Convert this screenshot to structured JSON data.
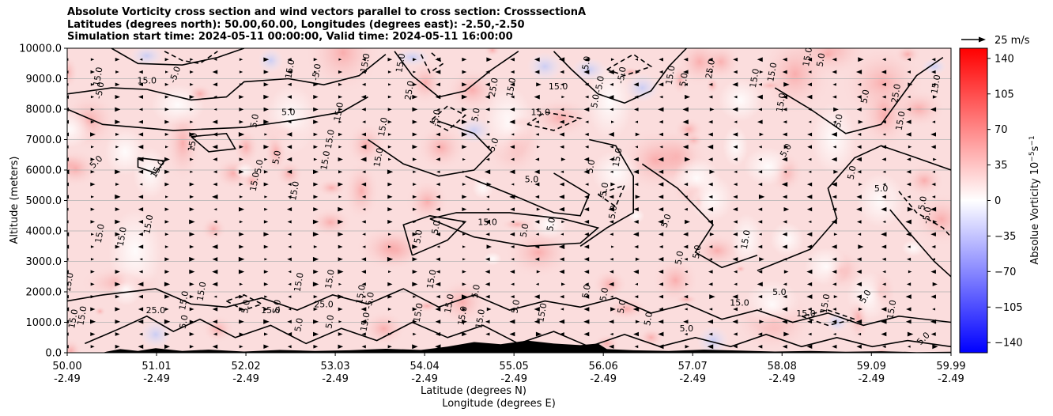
{
  "chart_data": {
    "type": "heatmap",
    "title_lines": [
      "Absolute Vorticity cross section and wind vectors parallel to cross section: CrosssectionA",
      "Latitudes (degrees north): 50.00,60.00, Longitudes (degrees east): -2.50,-2.50",
      "Simulation start time: 2024-05-11 00:00:00, Valid time: 2024-05-11 16:00:00"
    ],
    "ylabel": "Altitude (meters)",
    "xlabel_line1": "Latitude (degrees N)",
    "xlabel_line2": "Longitude (degrees E)",
    "ylim": [
      0,
      10000
    ],
    "xlim": [
      50.0,
      59.99
    ],
    "y_ticks": [
      0,
      1000,
      2000,
      3000,
      4000,
      5000,
      6000,
      7000,
      8000,
      9000,
      10000
    ],
    "y_tick_labels": [
      "0.0",
      "1000.0",
      "2000.0",
      "3000.0",
      "4000.0",
      "5000.0",
      "6000.0",
      "7000.0",
      "8000.0",
      "9000.0",
      "10000.0"
    ],
    "x_ticks": [
      50.0,
      51.01,
      52.02,
      53.03,
      54.04,
      55.05,
      56.06,
      57.07,
      58.08,
      59.09,
      59.99
    ],
    "x_tick_lat_labels": [
      "50.00",
      "51.01",
      "52.02",
      "53.03",
      "54.04",
      "55.05",
      "56.06",
      "57.07",
      "58.08",
      "59.09",
      "59.99"
    ],
    "x_tick_lon_labels": [
      "-2.49",
      "-2.49",
      "-2.49",
      "-2.49",
      "-2.49",
      "-2.49",
      "-2.49",
      "-2.49",
      "-2.49",
      "-2.49",
      "-2.49"
    ],
    "grid": "horizontal",
    "colorbar": {
      "label": "Absolue Vorticity 10",
      "label_units": "s",
      "exp1": "−5",
      "exp2": "−1",
      "range": [
        -150,
        150
      ],
      "ticks": [
        140,
        105,
        70,
        35,
        0,
        -35,
        -70,
        -105,
        -140
      ],
      "tick_labels": [
        "140",
        "105",
        "70",
        "35",
        "0",
        "−35",
        "−70",
        "−105",
        "−140"
      ],
      "colormap": "bwr"
    },
    "quiver_key": {
      "label": "25 m/s",
      "speed": 25
    },
    "contour_levels": [
      -5.0,
      5.0,
      15.0,
      25.0
    ],
    "contour_labels": [
      {
        "lat": 50.38,
        "alt": 9050,
        "text": "15.0",
        "rot": -80
      },
      {
        "lat": 50.4,
        "alt": 8600,
        "text": "-5.0",
        "rot": -80
      },
      {
        "lat": 50.9,
        "alt": 8850,
        "text": "15.0",
        "rot": 0
      },
      {
        "lat": 51.25,
        "alt": 9100,
        "text": "-5.0",
        "rot": -70
      },
      {
        "lat": 52.5,
        "alt": 7800,
        "text": "5.0",
        "rot": 0
      },
      {
        "lat": 52.15,
        "alt": 7600,
        "text": "5.0",
        "rot": -80
      },
      {
        "lat": 51.45,
        "alt": 6900,
        "text": "15.0",
        "rot": -80
      },
      {
        "lat": 51.05,
        "alt": 6000,
        "text": "15.0",
        "rot": -60
      },
      {
        "lat": 50.35,
        "alt": 6200,
        "text": "5.0",
        "rot": -45
      },
      {
        "lat": 52.2,
        "alt": 6100,
        "text": "5.0",
        "rot": -80
      },
      {
        "lat": 52.4,
        "alt": 6400,
        "text": "5.0",
        "rot": -80
      },
      {
        "lat": 52.15,
        "alt": 5600,
        "text": "15.0",
        "rot": -80
      },
      {
        "lat": 52.6,
        "alt": 5300,
        "text": "15.0",
        "rot": -80
      },
      {
        "lat": 53.0,
        "alt": 7000,
        "text": "15.0",
        "rot": -80
      },
      {
        "lat": 52.95,
        "alt": 6300,
        "text": "15.0",
        "rot": -80
      },
      {
        "lat": 53.1,
        "alt": 7900,
        "text": "15.0",
        "rot": -80
      },
      {
        "lat": 53.55,
        "alt": 6400,
        "text": "15.0",
        "rot": -80
      },
      {
        "lat": 50.95,
        "alt": 4200,
        "text": "15.0",
        "rot": -80
      },
      {
        "lat": 50.4,
        "alt": 3900,
        "text": "15.0",
        "rot": -80
      },
      {
        "lat": 50.65,
        "alt": 3800,
        "text": "15.0",
        "rot": -80
      },
      {
        "lat": 54.0,
        "alt": 3800,
        "text": "5.0",
        "rot": -80
      },
      {
        "lat": 54.2,
        "alt": 4100,
        "text": "5.0",
        "rot": -80
      },
      {
        "lat": 54.75,
        "alt": 4200,
        "text": "15.0",
        "rot": 0
      },
      {
        "lat": 55.5,
        "alt": 4200,
        "text": "5.0",
        "rot": -80
      },
      {
        "lat": 55.2,
        "alt": 4000,
        "text": "5.0",
        "rot": -80
      },
      {
        "lat": 54.85,
        "alt": 6800,
        "text": "5.0",
        "rot": -70
      },
      {
        "lat": 55.25,
        "alt": 5600,
        "text": "5.0",
        "rot": 0
      },
      {
        "lat": 55.95,
        "alt": 6100,
        "text": "5.0",
        "rot": -80
      },
      {
        "lat": 56.1,
        "alt": 5300,
        "text": "-5.0",
        "rot": -80
      },
      {
        "lat": 56.25,
        "alt": 6400,
        "text": "15.0",
        "rot": -80
      },
      {
        "lat": 56.2,
        "alt": 4600,
        "text": "5.0",
        "rot": -80
      },
      {
        "lat": 56.8,
        "alt": 4300,
        "text": "5.0",
        "rot": -70
      },
      {
        "lat": 56.95,
        "alt": 3100,
        "text": "5.0",
        "rot": -80
      },
      {
        "lat": 57.15,
        "alt": 3300,
        "text": "5.0",
        "rot": -80
      },
      {
        "lat": 57.7,
        "alt": 3700,
        "text": "15.0",
        "rot": -80
      },
      {
        "lat": 58.15,
        "alt": 6600,
        "text": "5.0",
        "rot": -60
      },
      {
        "lat": 59.2,
        "alt": 5300,
        "text": "5.0",
        "rot": 0
      },
      {
        "lat": 58.9,
        "alt": 5900,
        "text": "5.0",
        "rot": -80
      },
      {
        "lat": 59.7,
        "alt": 4900,
        "text": "5.0",
        "rot": -80
      },
      {
        "lat": 59.75,
        "alt": 4500,
        "text": "-5.0",
        "rot": -80
      },
      {
        "lat": 58.75,
        "alt": 7600,
        "text": "5.0",
        "rot": -80
      },
      {
        "lat": 59.45,
        "alt": 7600,
        "text": "15.0",
        "rot": -80
      },
      {
        "lat": 58.1,
        "alt": 8200,
        "text": "15.0",
        "rot": -80
      },
      {
        "lat": 59.05,
        "alt": 8400,
        "text": "5.0",
        "rot": -80
      },
      {
        "lat": 59.4,
        "alt": 8500,
        "text": "25.0",
        "rot": -80
      },
      {
        "lat": 59.85,
        "alt": 8800,
        "text": "15.0",
        "rot": -80
      },
      {
        "lat": 57.0,
        "alt": 8950,
        "text": "5.0",
        "rot": -80
      },
      {
        "lat": 57.3,
        "alt": 9300,
        "text": "25.0",
        "rot": -80
      },
      {
        "lat": 56.85,
        "alt": 9100,
        "text": "15.0",
        "rot": -80
      },
      {
        "lat": 55.55,
        "alt": 8650,
        "text": "15.0",
        "rot": 0
      },
      {
        "lat": 55.05,
        "alt": 8700,
        "text": "15.0",
        "rot": -80
      },
      {
        "lat": 54.85,
        "alt": 8700,
        "text": "25.0",
        "rot": -80
      },
      {
        "lat": 55.35,
        "alt": 7800,
        "text": "15.0",
        "rot": 0
      },
      {
        "lat": 54.2,
        "alt": 7700,
        "text": "-5.0",
        "rot": -80
      },
      {
        "lat": 53.6,
        "alt": 7400,
        "text": "15.0",
        "rot": -80
      },
      {
        "lat": 53.9,
        "alt": 8600,
        "text": "25.0",
        "rot": -80
      },
      {
        "lat": 54.65,
        "alt": 7800,
        "text": "5.0",
        "rot": -80
      },
      {
        "lat": 56.0,
        "alt": 8250,
        "text": "5.0",
        "rot": -80
      },
      {
        "lat": 56.3,
        "alt": 9100,
        "text": "-5.0",
        "rot": -80
      },
      {
        "lat": 58.0,
        "alt": 9200,
        "text": "15.0",
        "rot": -80
      },
      {
        "lat": 58.55,
        "alt": 9600,
        "text": "5.0",
        "rot": -80
      },
      {
        "lat": 58.4,
        "alt": 9700,
        "text": "15.0",
        "rot": -80
      },
      {
        "lat": 52.55,
        "alt": 9300,
        "text": "15.0",
        "rot": -80
      },
      {
        "lat": 53.4,
        "alt": 9500,
        "text": "15.0",
        "rot": -80
      },
      {
        "lat": 52.85,
        "alt": 9200,
        "text": "-5.0",
        "rot": -80
      },
      {
        "lat": 53.8,
        "alt": 9500,
        "text": "15.0",
        "rot": -80
      },
      {
        "lat": 55.9,
        "alt": 9500,
        "text": "5.0",
        "rot": -80
      },
      {
        "lat": 56.05,
        "alt": 8800,
        "text": "-5.0",
        "rot": -80
      },
      {
        "lat": 57.8,
        "alt": 9000,
        "text": "15.0",
        "rot": -80
      },
      {
        "lat": 50.05,
        "alt": 2300,
        "text": "15.0",
        "rot": -80
      },
      {
        "lat": 50.1,
        "alt": 1100,
        "text": "15.0",
        "rot": -80
      },
      {
        "lat": 50.2,
        "alt": 1200,
        "text": "15.0",
        "rot": -80
      },
      {
        "lat": 51.0,
        "alt": 1300,
        "text": "25.0",
        "rot": 0
      },
      {
        "lat": 51.35,
        "alt": 1700,
        "text": "15.0",
        "rot": -80
      },
      {
        "lat": 51.35,
        "alt": 1000,
        "text": "5.0",
        "rot": -80
      },
      {
        "lat": 51.55,
        "alt": 2000,
        "text": "15.0",
        "rot": -80
      },
      {
        "lat": 52.05,
        "alt": 1500,
        "text": "5.0",
        "rot": -80
      },
      {
        "lat": 52.3,
        "alt": 1300,
        "text": "15.0",
        "rot": 0
      },
      {
        "lat": 52.4,
        "alt": 1500,
        "text": "5.0",
        "rot": -80
      },
      {
        "lat": 52.65,
        "alt": 2300,
        "text": "15.0",
        "rot": -80
      },
      {
        "lat": 52.65,
        "alt": 900,
        "text": "5.0",
        "rot": -80
      },
      {
        "lat": 52.9,
        "alt": 1500,
        "text": "25.0",
        "rot": 0
      },
      {
        "lat": 53.0,
        "alt": 1000,
        "text": "5.0",
        "rot": -80
      },
      {
        "lat": 53.0,
        "alt": 2400,
        "text": "15.0",
        "rot": -80
      },
      {
        "lat": 53.45,
        "alt": 1700,
        "text": "-5.0",
        "rot": -80
      },
      {
        "lat": 53.35,
        "alt": 1900,
        "text": "15.0",
        "rot": -80
      },
      {
        "lat": 53.4,
        "alt": 1000,
        "text": "15.0",
        "rot": -80
      },
      {
        "lat": 54.0,
        "alt": 1300,
        "text": "15.0",
        "rot": -80
      },
      {
        "lat": 54.15,
        "alt": 2400,
        "text": "15.0",
        "rot": -80
      },
      {
        "lat": 54.35,
        "alt": 1600,
        "text": "15.0",
        "rot": -80
      },
      {
        "lat": 54.5,
        "alt": 1200,
        "text": "15.0",
        "rot": -80
      },
      {
        "lat": 54.65,
        "alt": 2000,
        "text": "5.0",
        "rot": -80
      },
      {
        "lat": 54.7,
        "alt": 1100,
        "text": "15.0",
        "rot": -80
      },
      {
        "lat": 55.1,
        "alt": 1500,
        "text": "5.0",
        "rot": -80
      },
      {
        "lat": 55.4,
        "alt": 1300,
        "text": "15.0",
        "rot": -80
      },
      {
        "lat": 55.9,
        "alt": 2000,
        "text": "5.0",
        "rot": -80
      },
      {
        "lat": 56.1,
        "alt": 1900,
        "text": "5.0",
        "rot": -80
      },
      {
        "lat": 56.3,
        "alt": 1500,
        "text": "5.0",
        "rot": -80
      },
      {
        "lat": 56.6,
        "alt": 1100,
        "text": "5.0",
        "rot": -80
      },
      {
        "lat": 57.0,
        "alt": 700,
        "text": "5.0",
        "rot": 0
      },
      {
        "lat": 57.6,
        "alt": 1550,
        "text": "15.0",
        "rot": 0
      },
      {
        "lat": 58.05,
        "alt": 1900,
        "text": "5.0",
        "rot": 0
      },
      {
        "lat": 58.35,
        "alt": 1200,
        "text": "15.0",
        "rot": 0
      },
      {
        "lat": 58.6,
        "alt": 1600,
        "text": "15.0",
        "rot": -80
      },
      {
        "lat": 59.05,
        "alt": 1800,
        "text": "5.0",
        "rot": -60
      },
      {
        "lat": 59.35,
        "alt": 1400,
        "text": "15.0",
        "rot": -80
      },
      {
        "lat": 59.7,
        "alt": 400,
        "text": "5.0",
        "rot": -45
      }
    ]
  }
}
